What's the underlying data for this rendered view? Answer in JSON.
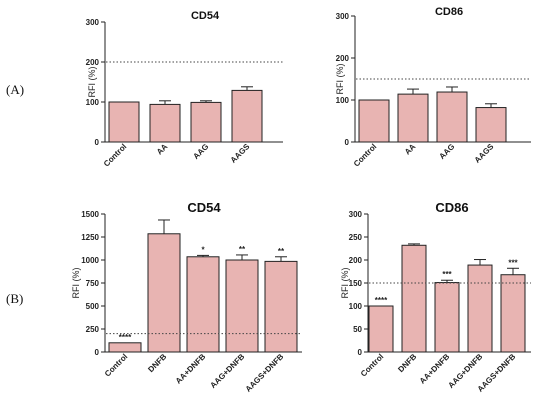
{
  "panels": [
    {
      "label": "(A)"
    },
    {
      "label": "(B)"
    }
  ],
  "colors": {
    "bar_fill": "#e8b4b2",
    "bar_stroke": "#222222",
    "axis": "#222222",
    "reference": "#444444"
  },
  "chart_data": [
    {
      "type": "bar",
      "title": "CD54",
      "ylabel": "RFI (%)",
      "categories": [
        "Control",
        "AA",
        "AAG",
        "AAGS"
      ],
      "values": [
        100,
        94,
        99,
        129
      ],
      "errors": [
        0,
        9,
        4,
        9
      ],
      "annotations": [
        "",
        "",
        "",
        ""
      ],
      "ylim": [
        0,
        300
      ],
      "yticks": [
        0,
        100,
        200,
        300
      ],
      "reference_line": 200,
      "grid": false
    },
    {
      "type": "bar",
      "title": "CD86",
      "ylabel": "RFI (%)",
      "categories": [
        "Control",
        "AA",
        "AAG",
        "AAGS"
      ],
      "values": [
        100,
        114,
        119,
        82
      ],
      "errors": [
        0,
        12,
        12,
        9
      ],
      "annotations": [
        "",
        "",
        "",
        ""
      ],
      "ylim": [
        0,
        300
      ],
      "yticks": [
        0,
        100,
        200,
        300
      ],
      "reference_line": 150,
      "grid": false
    },
    {
      "type": "bar",
      "title": "CD54",
      "ylabel": "RFI (%)",
      "categories": [
        "Control",
        "DNFB",
        "AA+DNFB",
        "AAG+DNFB",
        "AAGS+DNFB"
      ],
      "values": [
        100,
        1285,
        1035,
        1000,
        985
      ],
      "errors": [
        0,
        150,
        15,
        55,
        50
      ],
      "annotations": [
        "****",
        "",
        "*",
        "**",
        "**"
      ],
      "ylim": [
        0,
        1500
      ],
      "yticks": [
        0,
        250,
        500,
        750,
        1000,
        1250,
        1500
      ],
      "reference_line": 200,
      "grid": false
    },
    {
      "type": "bar",
      "title": "CD86",
      "ylabel": "RFI (%)",
      "categories": [
        "Control",
        "DNFB",
        "AA+DNFB",
        "AAG+DNFB",
        "AAGS+DNFB"
      ],
      "values": [
        100,
        232,
        151,
        189,
        168
      ],
      "errors": [
        0,
        3,
        5,
        12,
        14
      ],
      "annotations": [
        "****",
        "",
        "***",
        "",
        "***"
      ],
      "ylim": [
        0,
        300
      ],
      "yticks": [
        0,
        50,
        100,
        150,
        200,
        250,
        300
      ],
      "reference_line": 150,
      "grid": false
    }
  ]
}
